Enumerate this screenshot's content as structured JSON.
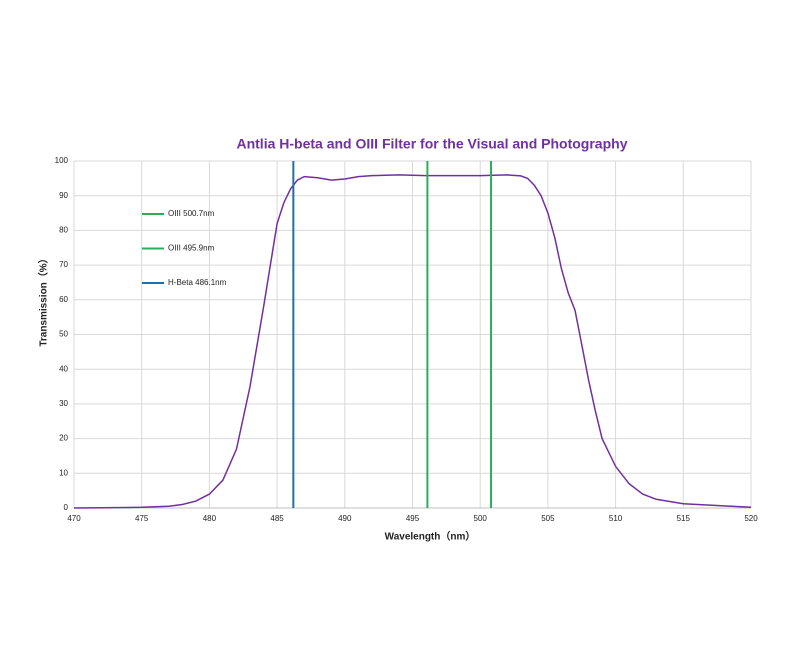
{
  "chart_data": {
    "type": "line",
    "title": "Antlia H-beta and OIII Filter for the Visual and Photography",
    "x_label": "Wavelength（nm）",
    "y_label": "Transmission（%）",
    "x": [
      470,
      475,
      477,
      478,
      479,
      480,
      481,
      482,
      483,
      484,
      485,
      485.5,
      486,
      486.5,
      487,
      488,
      489,
      490,
      491,
      492,
      494,
      496,
      498,
      500,
      502,
      503,
      503.5,
      504,
      504.5,
      505,
      505.5,
      506,
      506.5,
      507,
      507.5,
      508,
      508.5,
      509,
      510,
      511,
      512,
      513,
      515,
      518,
      520
    ],
    "values": [
      0,
      0.2,
      0.5,
      1,
      2,
      4,
      8,
      17,
      35,
      58,
      82,
      88,
      92,
      94.5,
      95.5,
      95.2,
      94.5,
      94.8,
      95.5,
      95.8,
      96,
      95.8,
      95.8,
      95.8,
      96,
      95.7,
      95,
      93,
      90,
      85,
      78,
      69,
      62,
      57,
      47,
      37,
      28,
      20,
      12,
      7,
      4,
      2.5,
      1.2,
      0.6,
      0.2
    ],
    "color": "#7030a0",
    "markers": [
      {
        "name": "OIII 500.7nm",
        "color": "#2bae5c",
        "x": 500.8
      },
      {
        "name": "OIII 495.9nm",
        "color": "#2bae5c",
        "x": 496.1
      },
      {
        "name": "H-Beta 486.1nm",
        "color": "#1f6fa8",
        "x": 486.2
      }
    ],
    "xlim": [
      470,
      520
    ],
    "xticks": [
      470,
      475,
      480,
      485,
      490,
      495,
      500,
      505,
      510,
      515,
      520
    ],
    "ylim": [
      0,
      100
    ],
    "yticks": [
      0,
      10,
      20,
      30,
      40,
      50,
      60,
      70,
      80,
      90,
      100
    ],
    "grid": true
  }
}
